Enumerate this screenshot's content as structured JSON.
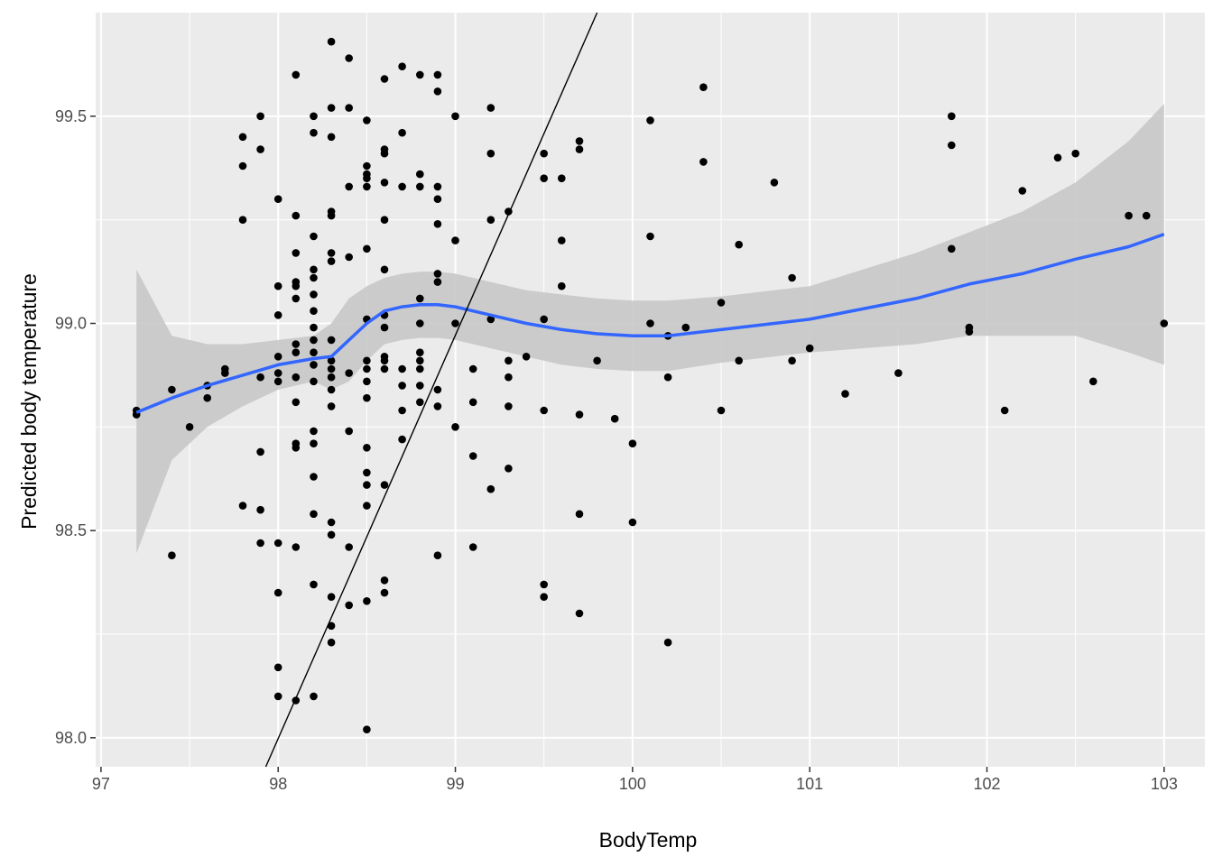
{
  "chart_data": {
    "type": "scatter",
    "xlabel": "BodyTemp",
    "ylabel": "Predicted body temperature",
    "xlim": [
      96.97,
      103.23
    ],
    "ylim": [
      97.93,
      99.75
    ],
    "x_ticks": [
      "97",
      "98",
      "99",
      "100",
      "101",
      "102",
      "103"
    ],
    "y_ticks": [
      "98.0",
      "98.5",
      "99.0",
      "99.5"
    ],
    "x_tick_values": [
      97,
      98,
      99,
      100,
      101,
      102,
      103
    ],
    "y_tick_values": [
      98.0,
      98.5,
      99.0,
      99.5
    ],
    "grid": true,
    "colors": {
      "panel": "#ebebeb",
      "grid": "#ffffff",
      "points": "#000000",
      "smooth": "#3366ff",
      "ribbon": "#c8c8c8",
      "reference": "#000000"
    },
    "reference_line": {
      "label": "",
      "x": [
        97.93,
        99.8
      ],
      "y": [
        97.93,
        99.75
      ]
    },
    "smooth": {
      "x": [
        97.2,
        97.4,
        97.6,
        97.8,
        98.0,
        98.2,
        98.3,
        98.4,
        98.5,
        98.6,
        98.7,
        98.8,
        98.9,
        99.0,
        99.2,
        99.4,
        99.6,
        99.8,
        100.0,
        100.2,
        100.5,
        100.8,
        101.0,
        101.3,
        101.6,
        101.9,
        102.2,
        102.5,
        102.8,
        103.0
      ],
      "y": [
        98.785,
        98.82,
        98.85,
        98.875,
        98.9,
        98.915,
        98.92,
        98.96,
        99.0,
        99.03,
        99.04,
        99.045,
        99.045,
        99.04,
        99.02,
        99.0,
        98.985,
        98.975,
        98.97,
        98.97,
        98.985,
        99.0,
        99.01,
        99.035,
        99.06,
        99.095,
        99.12,
        99.155,
        99.185,
        99.215
      ],
      "upper": [
        99.13,
        98.97,
        98.95,
        98.95,
        98.96,
        98.97,
        99.0,
        99.06,
        99.09,
        99.11,
        99.12,
        99.125,
        99.125,
        99.12,
        99.1,
        99.08,
        99.07,
        99.06,
        99.055,
        99.055,
        99.065,
        99.08,
        99.09,
        99.13,
        99.17,
        99.22,
        99.27,
        99.34,
        99.44,
        99.53
      ],
      "lower": [
        98.445,
        98.67,
        98.75,
        98.8,
        98.84,
        98.86,
        98.84,
        98.86,
        98.91,
        98.95,
        98.96,
        98.965,
        98.965,
        98.96,
        98.94,
        98.92,
        98.9,
        98.89,
        98.885,
        98.885,
        98.905,
        98.92,
        98.93,
        98.94,
        98.95,
        98.97,
        98.97,
        98.97,
        98.93,
        98.9
      ]
    },
    "points": [
      [
        97.2,
        98.79
      ],
      [
        97.2,
        98.78
      ],
      [
        97.4,
        98.84
      ],
      [
        97.4,
        98.44
      ],
      [
        97.5,
        98.75
      ],
      [
        97.6,
        98.85
      ],
      [
        97.6,
        98.82
      ],
      [
        97.7,
        98.89
      ],
      [
        97.7,
        98.88
      ],
      [
        97.8,
        99.45
      ],
      [
        97.8,
        99.38
      ],
      [
        97.8,
        99.25
      ],
      [
        97.8,
        98.56
      ],
      [
        97.9,
        99.5
      ],
      [
        97.9,
        99.42
      ],
      [
        97.9,
        98.87
      ],
      [
        97.9,
        98.69
      ],
      [
        97.9,
        98.55
      ],
      [
        97.9,
        98.47
      ],
      [
        98.0,
        99.3
      ],
      [
        98.0,
        99.09
      ],
      [
        98.0,
        99.02
      ],
      [
        98.0,
        98.92
      ],
      [
        98.0,
        98.88
      ],
      [
        98.0,
        98.86
      ],
      [
        98.0,
        98.47
      ],
      [
        98.0,
        98.35
      ],
      [
        98.0,
        98.17
      ],
      [
        98.0,
        98.1
      ],
      [
        98.1,
        99.6
      ],
      [
        98.1,
        99.26
      ],
      [
        98.1,
        99.17
      ],
      [
        98.1,
        99.1
      ],
      [
        98.1,
        99.09
      ],
      [
        98.1,
        99.06
      ],
      [
        98.1,
        98.95
      ],
      [
        98.1,
        98.93
      ],
      [
        98.1,
        98.87
      ],
      [
        98.1,
        98.81
      ],
      [
        98.1,
        98.71
      ],
      [
        98.1,
        98.7
      ],
      [
        98.1,
        98.46
      ],
      [
        98.1,
        98.09
      ],
      [
        98.2,
        99.5
      ],
      [
        98.2,
        99.46
      ],
      [
        98.2,
        99.21
      ],
      [
        98.2,
        99.13
      ],
      [
        98.2,
        99.11
      ],
      [
        98.2,
        99.07
      ],
      [
        98.2,
        99.03
      ],
      [
        98.2,
        98.99
      ],
      [
        98.2,
        98.96
      ],
      [
        98.2,
        98.93
      ],
      [
        98.2,
        98.9
      ],
      [
        98.2,
        98.86
      ],
      [
        98.2,
        98.74
      ],
      [
        98.2,
        98.71
      ],
      [
        98.2,
        98.63
      ],
      [
        98.2,
        98.54
      ],
      [
        98.2,
        98.37
      ],
      [
        98.2,
        98.1
      ],
      [
        98.3,
        99.68
      ],
      [
        98.3,
        99.52
      ],
      [
        98.3,
        99.45
      ],
      [
        98.3,
        99.27
      ],
      [
        98.3,
        99.26
      ],
      [
        98.3,
        99.17
      ],
      [
        98.3,
        99.15
      ],
      [
        98.3,
        98.96
      ],
      [
        98.3,
        98.91
      ],
      [
        98.3,
        98.89
      ],
      [
        98.3,
        98.87
      ],
      [
        98.3,
        98.84
      ],
      [
        98.3,
        98.8
      ],
      [
        98.3,
        98.52
      ],
      [
        98.3,
        98.49
      ],
      [
        98.3,
        98.34
      ],
      [
        98.3,
        98.27
      ],
      [
        98.3,
        98.23
      ],
      [
        98.4,
        99.64
      ],
      [
        98.4,
        99.52
      ],
      [
        98.4,
        99.33
      ],
      [
        98.4,
        99.16
      ],
      [
        98.4,
        98.88
      ],
      [
        98.4,
        98.74
      ],
      [
        98.4,
        98.46
      ],
      [
        98.4,
        98.32
      ],
      [
        98.5,
        99.49
      ],
      [
        98.5,
        99.38
      ],
      [
        98.5,
        99.36
      ],
      [
        98.5,
        99.35
      ],
      [
        98.5,
        99.33
      ],
      [
        98.5,
        99.18
      ],
      [
        98.5,
        99.01
      ],
      [
        98.5,
        98.91
      ],
      [
        98.5,
        98.89
      ],
      [
        98.5,
        98.86
      ],
      [
        98.5,
        98.82
      ],
      [
        98.5,
        98.7
      ],
      [
        98.5,
        98.64
      ],
      [
        98.5,
        98.61
      ],
      [
        98.5,
        98.56
      ],
      [
        98.5,
        98.33
      ],
      [
        98.5,
        98.02
      ],
      [
        98.6,
        99.59
      ],
      [
        98.6,
        99.42
      ],
      [
        98.6,
        99.41
      ],
      [
        98.6,
        99.34
      ],
      [
        98.6,
        99.25
      ],
      [
        98.6,
        99.13
      ],
      [
        98.6,
        99.02
      ],
      [
        98.6,
        98.99
      ],
      [
        98.6,
        98.92
      ],
      [
        98.6,
        98.91
      ],
      [
        98.6,
        98.89
      ],
      [
        98.6,
        98.61
      ],
      [
        98.6,
        98.38
      ],
      [
        98.6,
        98.35
      ],
      [
        98.7,
        99.62
      ],
      [
        98.7,
        99.46
      ],
      [
        98.7,
        99.33
      ],
      [
        98.7,
        98.89
      ],
      [
        98.7,
        98.85
      ],
      [
        98.7,
        98.79
      ],
      [
        98.7,
        98.72
      ],
      [
        98.8,
        99.6
      ],
      [
        98.8,
        99.36
      ],
      [
        98.8,
        99.33
      ],
      [
        98.8,
        99.06
      ],
      [
        98.8,
        99.0
      ],
      [
        98.8,
        98.93
      ],
      [
        98.8,
        98.91
      ],
      [
        98.8,
        98.89
      ],
      [
        98.8,
        98.85
      ],
      [
        98.8,
        98.81
      ],
      [
        98.9,
        99.6
      ],
      [
        98.9,
        99.56
      ],
      [
        98.9,
        99.33
      ],
      [
        98.9,
        99.3
      ],
      [
        98.9,
        99.24
      ],
      [
        98.9,
        99.12
      ],
      [
        98.9,
        99.1
      ],
      [
        98.9,
        98.84
      ],
      [
        98.9,
        98.8
      ],
      [
        98.9,
        98.44
      ],
      [
        99.0,
        99.5
      ],
      [
        99.0,
        99.2
      ],
      [
        99.0,
        99.0
      ],
      [
        99.0,
        98.75
      ],
      [
        99.1,
        98.89
      ],
      [
        99.1,
        98.81
      ],
      [
        99.1,
        98.68
      ],
      [
        99.1,
        98.46
      ],
      [
        99.2,
        99.52
      ],
      [
        99.2,
        99.41
      ],
      [
        99.2,
        99.25
      ],
      [
        99.2,
        99.01
      ],
      [
        99.2,
        98.6
      ],
      [
        99.3,
        99.27
      ],
      [
        99.3,
        98.91
      ],
      [
        99.3,
        98.87
      ],
      [
        99.3,
        98.8
      ],
      [
        99.3,
        98.65
      ],
      [
        99.4,
        98.92
      ],
      [
        99.5,
        99.41
      ],
      [
        99.5,
        99.35
      ],
      [
        99.5,
        99.01
      ],
      [
        99.5,
        98.79
      ],
      [
        99.5,
        98.37
      ],
      [
        99.5,
        98.34
      ],
      [
        99.6,
        99.35
      ],
      [
        99.6,
        99.2
      ],
      [
        99.6,
        99.09
      ],
      [
        99.7,
        99.44
      ],
      [
        99.7,
        99.42
      ],
      [
        99.7,
        98.78
      ],
      [
        99.7,
        98.54
      ],
      [
        99.7,
        98.3
      ],
      [
        99.8,
        98.91
      ],
      [
        99.9,
        98.77
      ],
      [
        100.0,
        98.71
      ],
      [
        100.0,
        98.52
      ],
      [
        100.1,
        99.49
      ],
      [
        100.1,
        99.21
      ],
      [
        100.1,
        99.0
      ],
      [
        100.2,
        98.97
      ],
      [
        100.2,
        98.87
      ],
      [
        100.2,
        98.23
      ],
      [
        100.3,
        98.99
      ],
      [
        100.4,
        99.57
      ],
      [
        100.4,
        99.39
      ],
      [
        100.5,
        99.05
      ],
      [
        100.5,
        98.79
      ],
      [
        100.6,
        99.19
      ],
      [
        100.6,
        98.91
      ],
      [
        100.8,
        99.34
      ],
      [
        100.9,
        99.11
      ],
      [
        100.9,
        98.91
      ],
      [
        101.0,
        98.94
      ],
      [
        101.2,
        98.83
      ],
      [
        101.5,
        98.88
      ],
      [
        101.8,
        99.5
      ],
      [
        101.8,
        99.43
      ],
      [
        101.8,
        99.18
      ],
      [
        101.9,
        98.99
      ],
      [
        101.9,
        98.98
      ],
      [
        102.1,
        98.79
      ],
      [
        102.2,
        99.32
      ],
      [
        102.4,
        99.4
      ],
      [
        102.5,
        99.41
      ],
      [
        102.6,
        98.86
      ],
      [
        102.8,
        99.26
      ],
      [
        102.9,
        99.26
      ],
      [
        103.0,
        99.0
      ]
    ]
  }
}
